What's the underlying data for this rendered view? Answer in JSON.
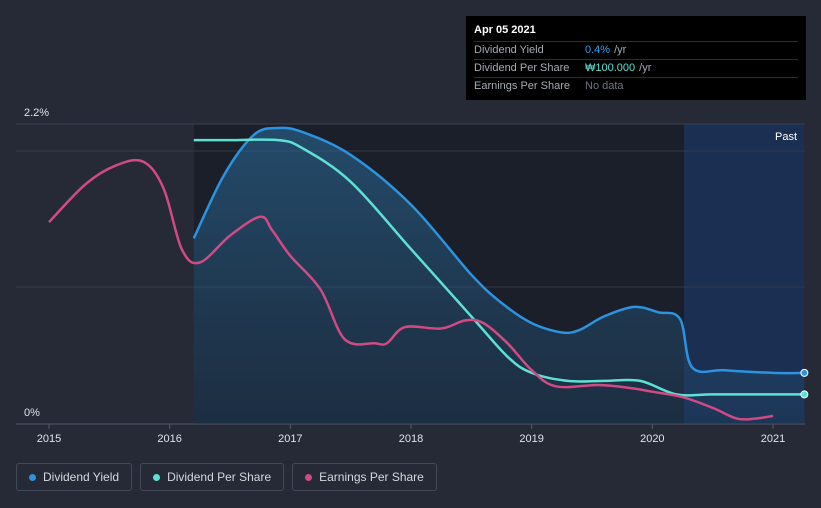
{
  "chart_data": {
    "type": "line",
    "x_axis": {
      "ticks": [
        "2015",
        "2016",
        "2017",
        "2018",
        "2019",
        "2020",
        "2021"
      ],
      "range": [
        2014.97,
        2021.26
      ]
    },
    "y_axis": {
      "min_label": "0%",
      "max_label": "2.2%",
      "range": [
        0,
        2.2
      ]
    },
    "past_label": "Past",
    "series": [
      {
        "name": "Dividend Yield",
        "color": "#2b93e0",
        "unit": "%",
        "points": [
          [
            2016.2,
            1.38
          ],
          [
            2016.45,
            1.85
          ],
          [
            2016.7,
            2.15
          ],
          [
            2016.9,
            2.2
          ],
          [
            2017.1,
            2.17
          ],
          [
            2017.5,
            2.0
          ],
          [
            2018.0,
            1.63
          ],
          [
            2018.5,
            1.11
          ],
          [
            2018.75,
            0.9
          ],
          [
            2019.0,
            0.75
          ],
          [
            2019.25,
            0.68
          ],
          [
            2019.4,
            0.7
          ],
          [
            2019.6,
            0.8
          ],
          [
            2019.85,
            0.87
          ],
          [
            2020.05,
            0.83
          ],
          [
            2020.23,
            0.78
          ],
          [
            2020.33,
            0.42
          ],
          [
            2020.6,
            0.4
          ],
          [
            2021.0,
            0.38
          ],
          [
            2021.26,
            0.38
          ]
        ]
      },
      {
        "name": "Dividend Per Share",
        "color": "#5ee0d4",
        "unit": "₩",
        "points": [
          [
            2016.2,
            2.11
          ],
          [
            2016.5,
            2.11
          ],
          [
            2016.9,
            2.11
          ],
          [
            2017.1,
            2.05
          ],
          [
            2017.5,
            1.8
          ],
          [
            2018.0,
            1.3
          ],
          [
            2018.5,
            0.8
          ],
          [
            2018.8,
            0.5
          ],
          [
            2019.0,
            0.38
          ],
          [
            2019.3,
            0.32
          ],
          [
            2019.6,
            0.32
          ],
          [
            2019.9,
            0.32
          ],
          [
            2020.2,
            0.22
          ],
          [
            2020.5,
            0.22
          ],
          [
            2021.0,
            0.22
          ],
          [
            2021.26,
            0.22
          ]
        ]
      },
      {
        "name": "Earnings Per Share",
        "color": "#d24a84",
        "unit": "₩",
        "points": [
          [
            2015.0,
            1.5
          ],
          [
            2015.3,
            1.78
          ],
          [
            2015.55,
            1.92
          ],
          [
            2015.78,
            1.95
          ],
          [
            2015.95,
            1.75
          ],
          [
            2016.1,
            1.3
          ],
          [
            2016.25,
            1.2
          ],
          [
            2016.5,
            1.4
          ],
          [
            2016.75,
            1.54
          ],
          [
            2016.85,
            1.44
          ],
          [
            2017.0,
            1.25
          ],
          [
            2017.25,
            1.0
          ],
          [
            2017.45,
            0.63
          ],
          [
            2017.7,
            0.6
          ],
          [
            2017.8,
            0.6
          ],
          [
            2017.95,
            0.72
          ],
          [
            2018.25,
            0.71
          ],
          [
            2018.45,
            0.77
          ],
          [
            2018.6,
            0.75
          ],
          [
            2018.8,
            0.6
          ],
          [
            2019.0,
            0.4
          ],
          [
            2019.2,
            0.28
          ],
          [
            2019.55,
            0.29
          ],
          [
            2019.8,
            0.27
          ],
          [
            2020.0,
            0.24
          ],
          [
            2020.25,
            0.2
          ],
          [
            2020.5,
            0.12
          ],
          [
            2020.7,
            0.04
          ],
          [
            2020.85,
            0.04
          ],
          [
            2021.0,
            0.06
          ]
        ]
      }
    ]
  },
  "tooltip": {
    "date": "Apr 05 2021",
    "rows": [
      {
        "label": "Dividend Yield",
        "value": "0.4%",
        "unit": "/yr"
      },
      {
        "label": "Dividend Per Share",
        "value": "₩100.000",
        "unit": "/yr"
      },
      {
        "label": "Earnings Per Share",
        "value": "No data"
      }
    ]
  },
  "legend": [
    {
      "label": "Dividend Yield",
      "color": "#2b93e0"
    },
    {
      "label": "Dividend Per Share",
      "color": "#5ee0d4"
    },
    {
      "label": "Earnings Per Share",
      "color": "#d24a84"
    }
  ]
}
